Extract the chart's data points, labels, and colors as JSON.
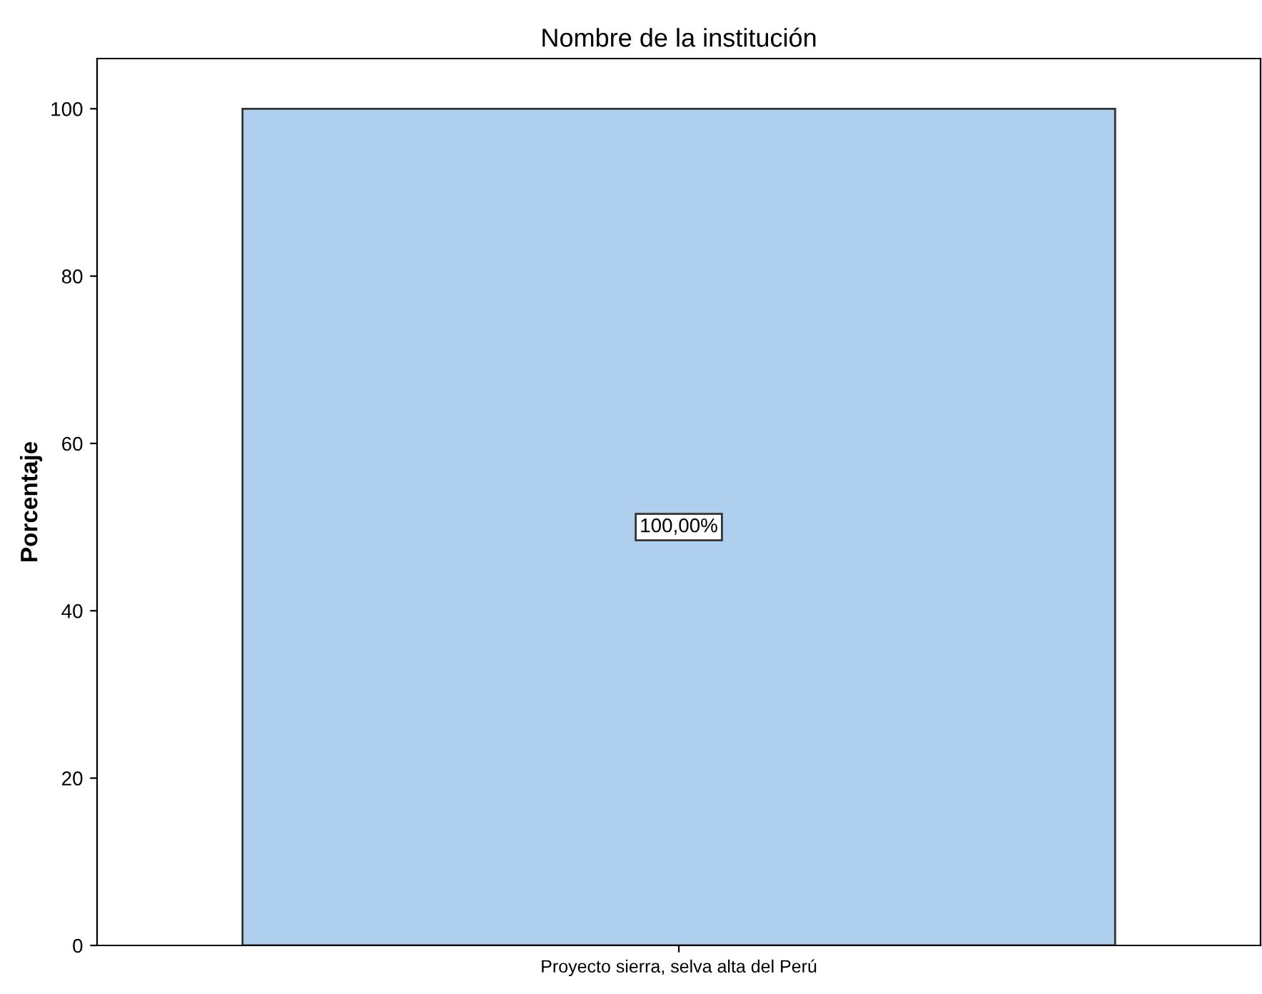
{
  "chart_data": {
    "type": "bar",
    "title": "Nombre de la institución",
    "ylabel": "Porcentaje",
    "categories": [
      "Proyecto sierra, selva alta del Perú"
    ],
    "values": [
      100
    ],
    "color": "#aecfed",
    "value_labels": [
      "100,00%"
    ],
    "ylim": [
      0,
      106
    ],
    "yticks": [
      0,
      20,
      40,
      60,
      80,
      100
    ],
    "grid": false
  }
}
